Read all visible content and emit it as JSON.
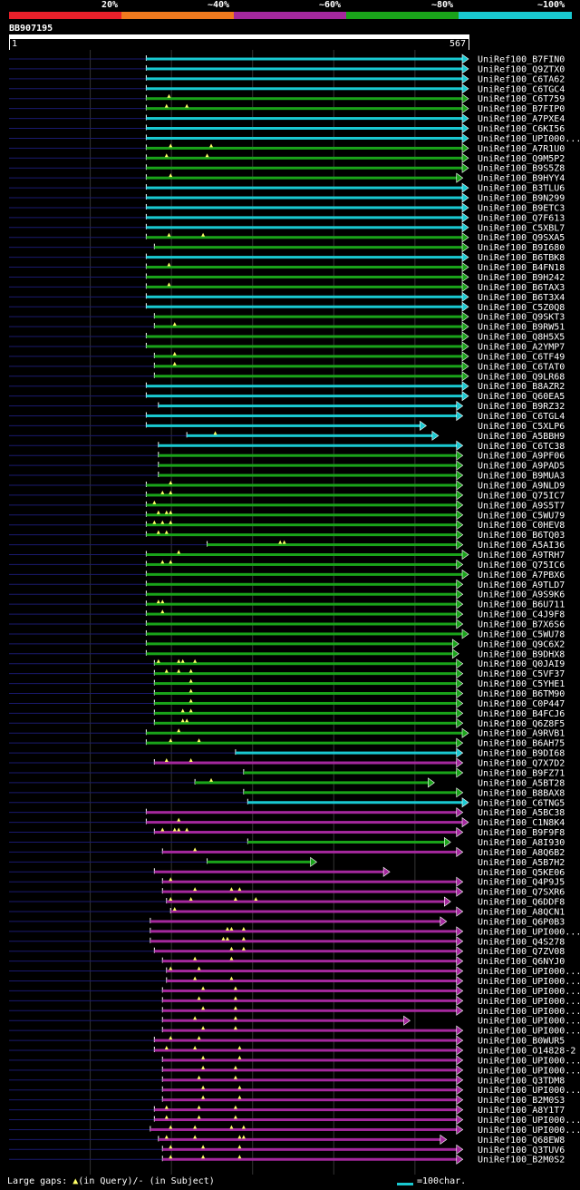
{
  "legend": {
    "labels": [
      "20%",
      "~40%",
      "~60%",
      "~80%",
      "~100%"
    ],
    "colors": [
      "#e8202a",
      "#f07a1e",
      "#a4289d",
      "#1aa31a",
      "#19c9d1"
    ]
  },
  "query": {
    "name": "BB907195",
    "start": "1",
    "end": "567",
    "length": 567
  },
  "footer": {
    "prefix": "Large gaps: ",
    "triangle": "▲",
    "in_query": "(in Query)/",
    "dash": "-",
    "in_subject": " (in Subject)",
    "scale_label": "=100char."
  },
  "chart_data": {
    "type": "alignment",
    "title": "BB907195",
    "units": "query residues",
    "query_length": 567,
    "hits": [
      {
        "name": "UniRef100_B7FIN0",
        "start": 170,
        "end": 567,
        "color": "cyan",
        "gaps": []
      },
      {
        "name": "UniRef100_Q9ZTX0",
        "start": 170,
        "end": 567,
        "color": "cyan",
        "gaps": []
      },
      {
        "name": "UniRef100_C6TA62",
        "start": 170,
        "end": 567,
        "color": "cyan",
        "gaps": []
      },
      {
        "name": "UniRef100_C6TGC4",
        "start": 170,
        "end": 567,
        "color": "cyan",
        "gaps": []
      },
      {
        "name": "UniRef100_C6T759",
        "start": 170,
        "end": 567,
        "color": "green",
        "gaps": [
          198
        ]
      },
      {
        "name": "UniRef100_B7FIP0",
        "start": 170,
        "end": 567,
        "color": "green",
        "gaps": [
          195,
          220
        ]
      },
      {
        "name": "UniRef100_A7PXE4",
        "start": 170,
        "end": 567,
        "color": "cyan",
        "gaps": []
      },
      {
        "name": "UniRef100_C6KI56",
        "start": 170,
        "end": 567,
        "color": "cyan",
        "gaps": []
      },
      {
        "name": "UniRef100_UPI000...",
        "start": 170,
        "end": 567,
        "color": "cyan",
        "gaps": []
      },
      {
        "name": "UniRef100_A7R1U0",
        "start": 170,
        "end": 567,
        "color": "green",
        "gaps": [
          200,
          250
        ]
      },
      {
        "name": "UniRef100_Q9M5P2",
        "start": 170,
        "end": 567,
        "color": "green",
        "gaps": [
          195,
          245
        ]
      },
      {
        "name": "UniRef100_B9S5Z8",
        "start": 170,
        "end": 567,
        "color": "green",
        "gaps": []
      },
      {
        "name": "UniRef100_B9HYY4",
        "start": 170,
        "end": 560,
        "color": "green",
        "gaps": [
          200
        ]
      },
      {
        "name": "UniRef100_B3TLU6",
        "start": 170,
        "end": 567,
        "color": "cyan",
        "gaps": []
      },
      {
        "name": "UniRef100_B9N299",
        "start": 170,
        "end": 567,
        "color": "cyan",
        "gaps": []
      },
      {
        "name": "UniRef100_B9ETC3",
        "start": 170,
        "end": 567,
        "color": "cyan",
        "gaps": []
      },
      {
        "name": "UniRef100_Q7F613",
        "start": 170,
        "end": 567,
        "color": "cyan",
        "gaps": []
      },
      {
        "name": "UniRef100_C5XBL7",
        "start": 170,
        "end": 567,
        "color": "cyan",
        "gaps": []
      },
      {
        "name": "UniRef100_Q9SXA5",
        "start": 170,
        "end": 567,
        "color": "green",
        "gaps": [
          198,
          240
        ]
      },
      {
        "name": "UniRef100_B9I680",
        "start": 180,
        "end": 567,
        "color": "green",
        "gaps": []
      },
      {
        "name": "UniRef100_B6TBK8",
        "start": 170,
        "end": 567,
        "color": "cyan",
        "gaps": []
      },
      {
        "name": "UniRef100_B4FN18",
        "start": 170,
        "end": 567,
        "color": "green",
        "gaps": [
          198
        ]
      },
      {
        "name": "UniRef100_B9H242",
        "start": 170,
        "end": 567,
        "color": "green",
        "gaps": []
      },
      {
        "name": "UniRef100_B6TAX3",
        "start": 170,
        "end": 567,
        "color": "green",
        "gaps": [
          198
        ]
      },
      {
        "name": "UniRef100_B6T3X4",
        "start": 170,
        "end": 567,
        "color": "cyan",
        "gaps": []
      },
      {
        "name": "UniRef100_C5Z0Q8",
        "start": 170,
        "end": 567,
        "color": "cyan",
        "gaps": []
      },
      {
        "name": "UniRef100_Q9SKT3",
        "start": 180,
        "end": 567,
        "color": "green",
        "gaps": []
      },
      {
        "name": "UniRef100_B9RW51",
        "start": 180,
        "end": 567,
        "color": "green",
        "gaps": [
          205
        ]
      },
      {
        "name": "UniRef100_Q8H5X5",
        "start": 170,
        "end": 567,
        "color": "green",
        "gaps": []
      },
      {
        "name": "UniRef100_A2YMP7",
        "start": 170,
        "end": 567,
        "color": "green",
        "gaps": []
      },
      {
        "name": "UniRef100_C6TF49",
        "start": 180,
        "end": 567,
        "color": "green",
        "gaps": [
          205
        ]
      },
      {
        "name": "UniRef100_C6TAT0",
        "start": 180,
        "end": 567,
        "color": "green",
        "gaps": [
          205
        ]
      },
      {
        "name": "UniRef100_Q9LR68",
        "start": 180,
        "end": 567,
        "color": "green",
        "gaps": []
      },
      {
        "name": "UniRef100_B8AZR2",
        "start": 170,
        "end": 567,
        "color": "cyan",
        "gaps": []
      },
      {
        "name": "UniRef100_Q60EA5",
        "start": 170,
        "end": 567,
        "color": "cyan",
        "gaps": []
      },
      {
        "name": "UniRef100_B9RZ32",
        "start": 185,
        "end": 560,
        "color": "cyan",
        "gaps": []
      },
      {
        "name": "UniRef100_C6TGL4",
        "start": 170,
        "end": 560,
        "color": "cyan",
        "gaps": []
      },
      {
        "name": "UniRef100_C5XLP6",
        "start": 170,
        "end": 515,
        "color": "cyan",
        "gaps": []
      },
      {
        "name": "UniRef100_A5BBH9",
        "start": 220,
        "end": 530,
        "color": "cyan",
        "gaps": [
          255
        ]
      },
      {
        "name": "UniRef100_C6TC38",
        "start": 185,
        "end": 560,
        "color": "cyan",
        "gaps": []
      },
      {
        "name": "UniRef100_A9PF06",
        "start": 185,
        "end": 560,
        "color": "green",
        "gaps": []
      },
      {
        "name": "UniRef100_A9PAD5",
        "start": 185,
        "end": 560,
        "color": "green",
        "gaps": []
      },
      {
        "name": "UniRef100_B9MUA3",
        "start": 185,
        "end": 560,
        "color": "green",
        "gaps": []
      },
      {
        "name": "UniRef100_A9NLD9",
        "start": 170,
        "end": 560,
        "color": "green",
        "gaps": [
          200
        ]
      },
      {
        "name": "UniRef100_Q75IC7",
        "start": 170,
        "end": 560,
        "color": "green",
        "gaps": [
          190,
          200
        ]
      },
      {
        "name": "UniRef100_A9S5T7",
        "start": 170,
        "end": 560,
        "color": "green",
        "gaps": [
          180
        ]
      },
      {
        "name": "UniRef100_C5WU79",
        "start": 170,
        "end": 560,
        "color": "green",
        "gaps": [
          185,
          195,
          200
        ]
      },
      {
        "name": "UniRef100_C0HEV8",
        "start": 170,
        "end": 560,
        "color": "green",
        "gaps": [
          180,
          190,
          200
        ]
      },
      {
        "name": "UniRef100_B6TQ03",
        "start": 170,
        "end": 560,
        "color": "green",
        "gaps": [
          185,
          195
        ]
      },
      {
        "name": "UniRef100_A5AI36",
        "start": 245,
        "end": 560,
        "color": "green",
        "gaps": [
          335,
          340
        ]
      },
      {
        "name": "UniRef100_A9TRH7",
        "start": 170,
        "end": 567,
        "color": "green",
        "gaps": [
          210
        ]
      },
      {
        "name": "UniRef100_Q75IC6",
        "start": 170,
        "end": 560,
        "color": "green",
        "gaps": [
          190,
          200
        ]
      },
      {
        "name": "UniRef100_A7PBX6",
        "start": 170,
        "end": 567,
        "color": "green",
        "gaps": []
      },
      {
        "name": "UniRef100_A9TLD7",
        "start": 170,
        "end": 560,
        "color": "green",
        "gaps": []
      },
      {
        "name": "UniRef100_A9S9K6",
        "start": 170,
        "end": 560,
        "color": "green",
        "gaps": []
      },
      {
        "name": "UniRef100_B6U711",
        "start": 170,
        "end": 560,
        "color": "green",
        "gaps": [
          185,
          190
        ]
      },
      {
        "name": "UniRef100_C4J9F8",
        "start": 170,
        "end": 560,
        "color": "green",
        "gaps": [
          190
        ]
      },
      {
        "name": "UniRef100_B7X6S6",
        "start": 170,
        "end": 560,
        "color": "green",
        "gaps": []
      },
      {
        "name": "UniRef100_C5WU78",
        "start": 170,
        "end": 567,
        "color": "green",
        "gaps": []
      },
      {
        "name": "UniRef100_Q9C6X2",
        "start": 170,
        "end": 555,
        "color": "green",
        "gaps": []
      },
      {
        "name": "UniRef100_B9DHX8",
        "start": 170,
        "end": 555,
        "color": "green",
        "gaps": []
      },
      {
        "name": "UniRef100_Q0JAI9",
        "start": 180,
        "end": 560,
        "color": "green",
        "gaps": [
          185,
          210,
          215,
          230
        ]
      },
      {
        "name": "UniRef100_C5VF37",
        "start": 180,
        "end": 560,
        "color": "green",
        "gaps": [
          195,
          210,
          225
        ]
      },
      {
        "name": "UniRef100_C5YHE1",
        "start": 180,
        "end": 560,
        "color": "green",
        "gaps": [
          225
        ]
      },
      {
        "name": "UniRef100_B6TM90",
        "start": 180,
        "end": 560,
        "color": "green",
        "gaps": [
          225
        ]
      },
      {
        "name": "UniRef100_C0P447",
        "start": 180,
        "end": 560,
        "color": "green",
        "gaps": [
          225
        ]
      },
      {
        "name": "UniRef100_B4FCJ6",
        "start": 180,
        "end": 560,
        "color": "green",
        "gaps": [
          215,
          225
        ]
      },
      {
        "name": "UniRef100_Q6Z8F5",
        "start": 180,
        "end": 560,
        "color": "green",
        "gaps": [
          215,
          220
        ]
      },
      {
        "name": "UniRef100_A9RVB1",
        "start": 170,
        "end": 567,
        "color": "green",
        "gaps": [
          210
        ]
      },
      {
        "name": "UniRef100_B6AH75",
        "start": 170,
        "end": 560,
        "color": "green",
        "gaps": [
          200,
          235
        ]
      },
      {
        "name": "UniRef100_B9DI68",
        "start": 280,
        "end": 560,
        "color": "cyan",
        "gaps": []
      },
      {
        "name": "UniRef100_Q7X7D2",
        "start": 180,
        "end": 560,
        "color": "purple",
        "gaps": [
          195,
          225
        ]
      },
      {
        "name": "UniRef100_B9FZ71",
        "start": 290,
        "end": 560,
        "color": "green",
        "gaps": []
      },
      {
        "name": "UniRef100_A5BT28",
        "start": 230,
        "end": 525,
        "color": "green",
        "gaps": [
          250
        ]
      },
      {
        "name": "UniRef100_B8BAX8",
        "start": 290,
        "end": 560,
        "color": "green",
        "gaps": []
      },
      {
        "name": "UniRef100_C6TNG5",
        "start": 295,
        "end": 567,
        "color": "cyan",
        "gaps": []
      },
      {
        "name": "UniRef100_A5BC38",
        "start": 170,
        "end": 560,
        "color": "purple",
        "gaps": []
      },
      {
        "name": "UniRef100_C1N8K4",
        "start": 170,
        "end": 567,
        "color": "purple",
        "gaps": [
          210
        ]
      },
      {
        "name": "UniRef100_B9F9F8",
        "start": 180,
        "end": 560,
        "color": "purple",
        "gaps": [
          190,
          205,
          210,
          220
        ]
      },
      {
        "name": "UniRef100_A8I930",
        "start": 295,
        "end": 545,
        "color": "green",
        "gaps": []
      },
      {
        "name": "UniRef100_A8Q6B2",
        "start": 190,
        "end": 560,
        "color": "purple",
        "gaps": [
          230
        ]
      },
      {
        "name": "UniRef100_A5B7H2",
        "start": 245,
        "end": 380,
        "color": "green",
        "gaps": []
      },
      {
        "name": "UniRef100_Q5KE06",
        "start": 180,
        "end": 470,
        "color": "purple",
        "gaps": []
      },
      {
        "name": "UniRef100_Q4P9J5",
        "start": 190,
        "end": 560,
        "color": "purple",
        "gaps": [
          200
        ]
      },
      {
        "name": "UniRef100_Q7SXR6",
        "start": 190,
        "end": 560,
        "color": "purple",
        "gaps": [
          230,
          275,
          285
        ]
      },
      {
        "name": "UniRef100_Q6DDF8",
        "start": 195,
        "end": 545,
        "color": "purple",
        "gaps": [
          200,
          225,
          280,
          305
        ]
      },
      {
        "name": "UniRef100_A8QCN1",
        "start": 200,
        "end": 560,
        "color": "purple",
        "gaps": [
          205
        ]
      },
      {
        "name": "UniRef100_Q6P0B3",
        "start": 175,
        "end": 540,
        "color": "purple",
        "gaps": []
      },
      {
        "name": "UniRef100_UPI000...",
        "start": 175,
        "end": 560,
        "color": "purple",
        "gaps": [
          270,
          275,
          290
        ]
      },
      {
        "name": "UniRef100_Q4S278",
        "start": 175,
        "end": 560,
        "color": "purple",
        "gaps": [
          265,
          270,
          290
        ]
      },
      {
        "name": "UniRef100_Q7ZV08",
        "start": 180,
        "end": 560,
        "color": "purple",
        "gaps": [
          275,
          290
        ]
      },
      {
        "name": "UniRef100_Q6NYJ0",
        "start": 190,
        "end": 560,
        "color": "purple",
        "gaps": [
          230,
          275
        ]
      },
      {
        "name": "UniRef100_UPI000...",
        "start": 195,
        "end": 560,
        "color": "purple",
        "gaps": [
          200,
          235
        ]
      },
      {
        "name": "UniRef100_UPI000...",
        "start": 195,
        "end": 560,
        "color": "purple",
        "gaps": [
          230,
          275
        ]
      },
      {
        "name": "UniRef100_UPI000...",
        "start": 190,
        "end": 560,
        "color": "purple",
        "gaps": [
          240,
          280
        ]
      },
      {
        "name": "UniRef100_UPI000...",
        "start": 190,
        "end": 560,
        "color": "purple",
        "gaps": [
          235,
          280
        ]
      },
      {
        "name": "UniRef100_UPI000...",
        "start": 190,
        "end": 560,
        "color": "purple",
        "gaps": [
          240,
          280
        ]
      },
      {
        "name": "UniRef100_UPI000...",
        "start": 190,
        "end": 495,
        "color": "purple",
        "gaps": [
          230,
          280
        ]
      },
      {
        "name": "UniRef100_UPI000...",
        "start": 190,
        "end": 560,
        "color": "purple",
        "gaps": [
          240,
          280
        ]
      },
      {
        "name": "UniRef100_B0WUR5",
        "start": 180,
        "end": 560,
        "color": "purple",
        "gaps": [
          200,
          235
        ]
      },
      {
        "name": "UniRef100_O14828-2",
        "start": 180,
        "end": 560,
        "color": "purple",
        "gaps": [
          195,
          230,
          285
        ]
      },
      {
        "name": "UniRef100_UPI000...",
        "start": 190,
        "end": 560,
        "color": "purple",
        "gaps": [
          240,
          285
        ]
      },
      {
        "name": "UniRef100_UPI000...",
        "start": 190,
        "end": 560,
        "color": "purple",
        "gaps": [
          240,
          280
        ]
      },
      {
        "name": "UniRef100_Q3TDM8",
        "start": 190,
        "end": 560,
        "color": "purple",
        "gaps": [
          235,
          280
        ]
      },
      {
        "name": "UniRef100_UPI000...",
        "start": 190,
        "end": 560,
        "color": "purple",
        "gaps": [
          240,
          285
        ]
      },
      {
        "name": "UniRef100_B2M0S3",
        "start": 190,
        "end": 560,
        "color": "purple",
        "gaps": [
          240,
          285
        ]
      },
      {
        "name": "UniRef100_A8Y1T7",
        "start": 180,
        "end": 560,
        "color": "purple",
        "gaps": [
          195,
          235,
          280
        ]
      },
      {
        "name": "UniRef100_UPI000...",
        "start": 180,
        "end": 560,
        "color": "purple",
        "gaps": [
          195,
          235,
          280
        ]
      },
      {
        "name": "UniRef100_UPI000...",
        "start": 175,
        "end": 560,
        "color": "purple",
        "gaps": [
          200,
          230,
          275,
          290
        ]
      },
      {
        "name": "UniRef100_Q68EW8",
        "start": 185,
        "end": 540,
        "color": "purple",
        "gaps": [
          195,
          230,
          285,
          290
        ]
      },
      {
        "name": "UniRef100_Q3TUV6",
        "start": 190,
        "end": 560,
        "color": "purple",
        "gaps": [
          200,
          240,
          285
        ]
      },
      {
        "name": "UniRef100_B2M0S2",
        "start": 190,
        "end": 560,
        "color": "purple",
        "gaps": [
          200,
          240,
          285
        ]
      }
    ]
  }
}
